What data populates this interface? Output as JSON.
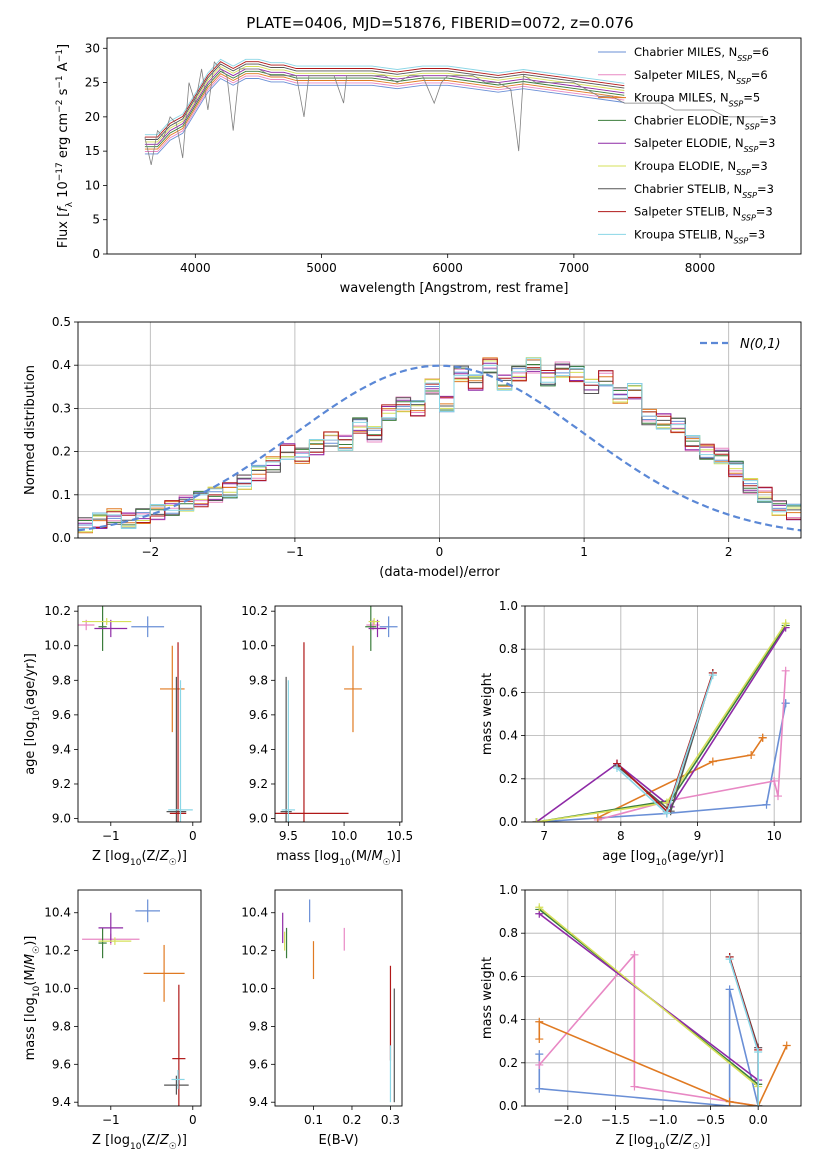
{
  "title": "PLATE=0406, MJD=51876, FIBERID=0072, z=0.076",
  "palette": {
    "Chabrier MILES": "#6a8fd6",
    "Salpeter MILES": "#e888c4",
    "Kroupa MILES": "#e07a22",
    "Chabrier ELODIE": "#3b7d3b",
    "Salpeter ELODIE": "#8e2aa6",
    "Kroupa ELODIE": "#d6e05a",
    "Chabrier STELIB": "#555555",
    "Salpeter STELIB": "#b01818",
    "Kroupa STELIB": "#8ad6e6"
  },
  "chart_data": [
    {
      "id": "spectrum",
      "type": "line",
      "xlabel": "wavelength [Angstrom, rest frame]",
      "ylabel": "Flux [f_λ 10^-17 erg cm^-2 s^-1 A^-1]",
      "xlim": [
        3300,
        8800
      ],
      "ylim": [
        0,
        31.5
      ],
      "xticks": [
        4000,
        5000,
        6000,
        7000,
        8000
      ],
      "yticks": [
        0,
        5,
        10,
        15,
        20,
        25,
        30
      ],
      "legend_position": "top-right",
      "data_color": "#808080",
      "data_x": [
        3600,
        3650,
        3700,
        3750,
        3800,
        3850,
        3900,
        3950,
        4000,
        4050,
        4100,
        4150,
        4200,
        4250,
        4300,
        4350,
        4400,
        4500,
        4600,
        4700,
        4800,
        4861,
        4900,
        5000,
        5100,
        5175,
        5200,
        5300,
        5400,
        5500,
        5600,
        5700,
        5800,
        5893,
        5950,
        6000,
        6100,
        6200,
        6300,
        6400,
        6500,
        6563,
        6600,
        6700,
        6800,
        6900,
        7000,
        7100,
        7200,
        7300,
        7400,
        7500,
        7600,
        7700,
        7800,
        7900,
        8000,
        8100,
        8200,
        8300,
        8400,
        8500
      ],
      "data_y": [
        17,
        13,
        18,
        17,
        20,
        19,
        14,
        25,
        22,
        27,
        21,
        28,
        27,
        26,
        18,
        27,
        27,
        27,
        26,
        26,
        26,
        20,
        26,
        26,
        26,
        22,
        26,
        26,
        26,
        26,
        25,
        26,
        26,
        22,
        25,
        26,
        26,
        26,
        25,
        25,
        24,
        15,
        26,
        25,
        25,
        25,
        25,
        24,
        23,
        23,
        22,
        22,
        22,
        22,
        21,
        21,
        21,
        21,
        20,
        20,
        20,
        20
      ],
      "model_x": [
        3600,
        3700,
        3800,
        3900,
        4000,
        4100,
        4200,
        4300,
        4400,
        4500,
        4600,
        4700,
        4800,
        4900,
        5000,
        5200,
        5400,
        5600,
        5800,
        6000,
        6200,
        6400,
        6600,
        6800,
        7000,
        7200,
        7400
      ],
      "model_y": [
        16,
        16,
        18,
        19,
        22,
        25,
        27,
        26,
        27,
        27,
        26.5,
        26.5,
        26,
        26,
        26,
        26,
        26,
        25.5,
        26,
        26,
        25.5,
        25,
        25.5,
        25,
        24.5,
        24,
        23.5
      ],
      "series": [
        {
          "name": "Chabrier MILES, N_SSP=6",
          "sub": "SSP",
          "label": "Chabrier MILES, N",
          "suffix": "=6",
          "marker": "+"
        },
        {
          "name": "Salpeter MILES, N_SSP=6",
          "sub": "SSP",
          "label": "Salpeter MILES, N",
          "suffix": "=6",
          "marker": "+"
        },
        {
          "name": "Kroupa MILES, N_SSP=5",
          "sub": "SSP",
          "label": "Kroupa MILES, N",
          "suffix": "=5",
          "marker": "+"
        },
        {
          "name": "Chabrier ELODIE, N_SSP=3",
          "sub": "SSP",
          "label": "Chabrier ELODIE, N",
          "suffix": "=3",
          "marker": "+"
        },
        {
          "name": "Salpeter ELODIE, N_SSP=3",
          "sub": "SSP",
          "label": "Salpeter ELODIE, N",
          "suffix": "=3",
          "marker": "+"
        },
        {
          "name": "Kroupa ELODIE, N_SSP=3",
          "sub": "SSP",
          "label": "Kroupa ELODIE, N",
          "suffix": "=3",
          "marker": "+"
        },
        {
          "name": "Chabrier STELIB, N_SSP=3",
          "sub": "SSP",
          "label": "Chabrier STELIB, N",
          "suffix": "=3",
          "marker": "+"
        },
        {
          "name": "Salpeter STELIB, N_SSP=3",
          "sub": "SSP",
          "label": "Salpeter STELIB, N",
          "suffix": "=3",
          "marker": "+"
        },
        {
          "name": "Kroupa STELIB, N_SSP=3",
          "sub": "SSP",
          "label": "Kroupa STELIB, N",
          "suffix": "=3",
          "marker": "+"
        }
      ]
    },
    {
      "id": "residuals",
      "type": "line",
      "xlabel": "(data-model)/error",
      "ylabel": "Normed distribution",
      "xlim": [
        -2.5,
        2.5
      ],
      "ylim": [
        0,
        0.5
      ],
      "xticks": [
        -2,
        -1,
        0,
        1,
        2
      ],
      "yticks": [
        0.0,
        0.1,
        0.2,
        0.3,
        0.4,
        0.5
      ],
      "grid": true,
      "legend_position": "top-right",
      "gaussian": {
        "label": "N(0,1)",
        "color": "#5b88d6",
        "dash": true
      },
      "bin_edges_start": -2.5,
      "bin_width": 0.1,
      "histogram_values": [
        0.03,
        0.04,
        0.05,
        0.04,
        0.05,
        0.06,
        0.07,
        0.08,
        0.09,
        0.1,
        0.11,
        0.13,
        0.15,
        0.17,
        0.2,
        0.19,
        0.21,
        0.23,
        0.22,
        0.26,
        0.24,
        0.29,
        0.31,
        0.3,
        0.35,
        0.31,
        0.38,
        0.36,
        0.4,
        0.36,
        0.38,
        0.4,
        0.37,
        0.39,
        0.38,
        0.35,
        0.37,
        0.33,
        0.34,
        0.28,
        0.27,
        0.26,
        0.22,
        0.2,
        0.19,
        0.16,
        0.12,
        0.1,
        0.07,
        0.06
      ]
    },
    {
      "id": "age-vs-Z",
      "type": "scatter",
      "xlabel": "Z [log10(Z/Z☉)]",
      "ylabel": "age  [log10(age/yr)]",
      "xlim": [
        -1.4,
        0.1
      ],
      "ylim": [
        8.98,
        10.23
      ],
      "xticks": [
        -1,
        0
      ],
      "yticks": [
        9.0,
        9.2,
        9.4,
        9.6,
        9.8,
        10.0,
        10.2
      ],
      "points": [
        {
          "s": 0,
          "x": -0.55,
          "y": 10.11,
          "xe": 0.2,
          "ye": 0.06
        },
        {
          "s": 1,
          "x": -1.3,
          "y": 10.12,
          "xe": 0.1,
          "ye": 0.03
        },
        {
          "s": 2,
          "x": -0.25,
          "y": 9.75,
          "xe": 0.15,
          "ye": 0.25
        },
        {
          "s": 3,
          "x": -1.1,
          "y": 10.11,
          "xe": 0.05,
          "ye": 0.14
        },
        {
          "s": 4,
          "x": -1.0,
          "y": 10.1,
          "xe": 0.2,
          "ye": 0.05
        },
        {
          "s": 5,
          "x": -1.05,
          "y": 10.14,
          "xe": 0.3,
          "ye": 0.02
        },
        {
          "s": 6,
          "x": -0.2,
          "y": 9.04,
          "xe": 0.12,
          "ye": 0.78
        },
        {
          "s": 7,
          "x": -0.18,
          "y": 9.03,
          "xe": 0.1,
          "ye": 0.99
        },
        {
          "s": 8,
          "x": -0.15,
          "y": 9.05,
          "xe": 0.15,
          "ye": 0.75
        }
      ]
    },
    {
      "id": "age-vs-mass",
      "type": "scatter",
      "xlabel": "mass [log10(M/M☉)]",
      "ylabel": "",
      "xlim": [
        9.38,
        10.52
      ],
      "ylim": [
        8.98,
        10.23
      ],
      "xticks": [
        9.5,
        10.0,
        10.5
      ],
      "yticks": [
        9.0,
        9.2,
        9.4,
        9.6,
        9.8,
        10.0,
        10.2
      ],
      "points": [
        {
          "s": 0,
          "x": 10.4,
          "y": 10.11,
          "xe": 0.08,
          "ye": 0.06
        },
        {
          "s": 1,
          "x": 10.26,
          "y": 10.12,
          "xe": 0.06,
          "ye": 0.03
        },
        {
          "s": 2,
          "x": 10.08,
          "y": 9.75,
          "xe": 0.08,
          "ye": 0.25
        },
        {
          "s": 3,
          "x": 10.24,
          "y": 10.11,
          "xe": 0.05,
          "ye": 0.14
        },
        {
          "s": 4,
          "x": 10.3,
          "y": 10.1,
          "xe": 0.08,
          "ye": 0.05
        },
        {
          "s": 5,
          "x": 10.27,
          "y": 10.14,
          "xe": 0.05,
          "ye": 0.02
        },
        {
          "s": 6,
          "x": 9.48,
          "y": 9.04,
          "xe": 0.05,
          "ye": 0.78
        },
        {
          "s": 7,
          "x": 9.64,
          "y": 9.03,
          "xe": 0.4,
          "ye": 0.99
        },
        {
          "s": 8,
          "x": 9.5,
          "y": 9.05,
          "xe": 0.06,
          "ye": 0.75
        }
      ]
    },
    {
      "id": "weight-vs-age",
      "type": "line",
      "xlabel": "age  [log10(age/yr)]",
      "ylabel": "mass weight",
      "xlim": [
        6.75,
        10.35
      ],
      "ylim": [
        0,
        1.0
      ],
      "xticks": [
        7,
        8,
        9,
        10
      ],
      "yticks": [
        0.0,
        0.2,
        0.4,
        0.6,
        0.8,
        1.0
      ],
      "grid": true,
      "lines": [
        {
          "s": 0,
          "x": [
            6.9,
            8.6,
            9.9,
            10.15,
            10.15
          ],
          "y": [
            0.0,
            0.04,
            0.08,
            0.55,
            0.55
          ]
        },
        {
          "s": 1,
          "x": [
            7.7,
            8.65,
            10.0,
            10.05,
            10.15
          ],
          "y": [
            0.01,
            0.1,
            0.19,
            0.12,
            0.7
          ]
        },
        {
          "s": 2,
          "x": [
            7.7,
            9.2,
            9.7,
            9.85,
            9.85
          ],
          "y": [
            0.02,
            0.28,
            0.31,
            0.39,
            0.39
          ]
        },
        {
          "s": 3,
          "x": [
            6.9,
            8.65,
            10.15
          ],
          "y": [
            0.0,
            0.1,
            0.91
          ]
        },
        {
          "s": 4,
          "x": [
            6.9,
            7.95,
            8.65,
            10.15
          ],
          "y": [
            0.0,
            0.27,
            0.07,
            0.9
          ]
        },
        {
          "s": 5,
          "x": [
            6.9,
            8.6,
            10.15
          ],
          "y": [
            0.0,
            0.09,
            0.92
          ]
        },
        {
          "s": 6,
          "x": [
            7.95,
            8.65,
            9.2
          ],
          "y": [
            0.26,
            0.05,
            0.69
          ]
        },
        {
          "s": 7,
          "x": [
            7.95,
            8.6,
            9.2
          ],
          "y": [
            0.27,
            0.05,
            0.69
          ]
        },
        {
          "s": 8,
          "x": [
            7.95,
            8.6,
            9.2
          ],
          "y": [
            0.25,
            0.04,
            0.68
          ]
        }
      ]
    },
    {
      "id": "mass-vs-Z",
      "type": "scatter",
      "xlabel": "Z [log10(Z/Z☉)]",
      "ylabel": "mass [log10(M/M☉)]",
      "xlim": [
        -1.4,
        0.1
      ],
      "ylim": [
        9.38,
        10.52
      ],
      "xticks": [
        -1,
        0
      ],
      "yticks": [
        9.4,
        9.6,
        9.8,
        10.0,
        10.2,
        10.4
      ],
      "points": [
        {
          "s": 0,
          "x": -0.55,
          "y": 10.41,
          "xe": 0.15,
          "ye": 0.06
        },
        {
          "s": 1,
          "x": -1.0,
          "y": 10.26,
          "xe": 0.35,
          "ye": 0.03
        },
        {
          "s": 2,
          "x": -0.35,
          "y": 10.08,
          "xe": 0.25,
          "ye": 0.15
        },
        {
          "s": 3,
          "x": -1.1,
          "y": 10.24,
          "xe": 0.05,
          "ye": 0.08
        },
        {
          "s": 4,
          "x": -1.0,
          "y": 10.32,
          "xe": 0.15,
          "ye": 0.08
        },
        {
          "s": 5,
          "x": -0.95,
          "y": 10.25,
          "xe": 0.2,
          "ye": 0.02
        },
        {
          "s": 6,
          "x": -0.2,
          "y": 9.49,
          "xe": 0.15,
          "ye": 0.05
        },
        {
          "s": 7,
          "x": -0.17,
          "y": 9.63,
          "xe": 0.08,
          "ye": 0.39
        },
        {
          "s": 8,
          "x": -0.18,
          "y": 9.52,
          "xe": 0.08,
          "ye": 0.05
        }
      ]
    },
    {
      "id": "mass-vs-EBV",
      "type": "scatter",
      "xlabel": "E(B-V)",
      "ylabel": "",
      "xlim": [
        0.0,
        0.33
      ],
      "ylim": [
        9.38,
        10.52
      ],
      "xticks": [
        0.1,
        0.2,
        0.3
      ],
      "yticks": [
        9.4,
        9.6,
        9.8,
        10.0,
        10.2,
        10.4
      ],
      "points": [
        {
          "s": 0,
          "x": 0.09,
          "y": 10.41,
          "xe": 0,
          "ye": 0.06
        },
        {
          "s": 1,
          "x": 0.18,
          "y": 10.26,
          "xe": 0,
          "ye": 0.06
        },
        {
          "s": 2,
          "x": 0.1,
          "y": 10.15,
          "xe": 0,
          "ye": 0.1
        },
        {
          "s": 3,
          "x": 0.03,
          "y": 10.24,
          "xe": 0,
          "ye": 0.08
        },
        {
          "s": 4,
          "x": 0.02,
          "y": 10.32,
          "xe": 0,
          "ye": 0.08
        },
        {
          "s": 5,
          "x": 0.025,
          "y": 10.25,
          "xe": 0,
          "ye": 0.05
        },
        {
          "s": 6,
          "x": 0.31,
          "y": 9.7,
          "xe": 0,
          "ye": 0.3
        },
        {
          "s": 7,
          "x": 0.3,
          "y": 9.87,
          "xe": 0,
          "ye": 0.25
        },
        {
          "s": 8,
          "x": 0.3,
          "y": 9.55,
          "xe": 0,
          "ye": 0.15
        }
      ]
    },
    {
      "id": "weight-vs-Z",
      "type": "line",
      "xlabel": "Z [log10(Z/Z☉)]",
      "ylabel": "mass weight",
      "xlim": [
        -2.45,
        0.45
      ],
      "ylim": [
        0,
        1.0
      ],
      "xticks": [
        -2.0,
        -1.5,
        -1.0,
        -0.5,
        0.0
      ],
      "yticks": [
        0.0,
        0.2,
        0.4,
        0.6,
        0.8,
        1.0
      ],
      "grid": true,
      "lines": [
        {
          "s": 0,
          "x": [
            -2.3,
            -2.3,
            -0.3,
            -0.3,
            0.0,
            0.0
          ],
          "y": [
            0.24,
            0.08,
            0.0,
            0.54,
            0.0,
            0.1
          ]
        },
        {
          "s": 1,
          "x": [
            -2.3,
            -1.3,
            -1.3,
            0.0,
            0.0
          ],
          "y": [
            0.19,
            0.7,
            0.09,
            0.0,
            0.27
          ]
        },
        {
          "s": 2,
          "x": [
            -2.3,
            -2.3,
            -0.3,
            0.0,
            0.3
          ],
          "y": [
            0.31,
            0.39,
            0.02,
            0.0,
            0.28
          ]
        },
        {
          "s": 3,
          "x": [
            -2.3,
            0.0,
            0.0
          ],
          "y": [
            0.91,
            0.1,
            0.0
          ]
        },
        {
          "s": 4,
          "x": [
            -2.3,
            0.0,
            0.0
          ],
          "y": [
            0.89,
            0.12,
            0.0
          ]
        },
        {
          "s": 5,
          "x": [
            -2.3,
            0.0,
            0.0
          ],
          "y": [
            0.92,
            0.09,
            0.0
          ]
        },
        {
          "s": 6,
          "x": [
            -0.3,
            0.0,
            0.0
          ],
          "y": [
            0.69,
            0.27,
            0.0
          ]
        },
        {
          "s": 7,
          "x": [
            -0.3,
            0.0,
            0.0
          ],
          "y": [
            0.69,
            0.26,
            0.0
          ]
        },
        {
          "s": 8,
          "x": [
            -0.3,
            0.0,
            0.0
          ],
          "y": [
            0.68,
            0.25,
            0.0
          ]
        }
      ]
    }
  ]
}
